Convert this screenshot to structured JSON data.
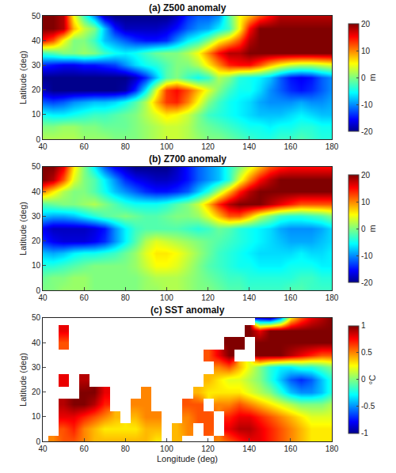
{
  "chart_data": [
    {
      "type": "heatmap",
      "title": "(a) Z500 anomaly",
      "y_label": "Latitude (deg)",
      "x": [
        40,
        45,
        50,
        55,
        60,
        65,
        70,
        75,
        80,
        85,
        90,
        95,
        100,
        105,
        110,
        115,
        120,
        125,
        130,
        135,
        140,
        145,
        150,
        155,
        160,
        165,
        170,
        175,
        180
      ],
      "y": [
        0,
        5,
        10,
        15,
        20,
        25,
        30,
        35,
        40,
        45,
        50
      ],
      "z": [
        [
          2,
          2,
          2,
          2,
          1,
          1,
          1,
          0,
          0,
          0,
          1,
          2,
          3,
          3,
          2,
          1,
          0,
          0,
          -1,
          -2,
          -3,
          -4,
          -4,
          -3,
          -3,
          -2,
          -3,
          -4,
          -4
        ],
        [
          0,
          0,
          1,
          1,
          0,
          0,
          -1,
          -1,
          -1,
          0,
          1,
          2,
          3,
          3,
          2,
          0,
          -1,
          -2,
          -3,
          -4,
          -5,
          -5,
          -6,
          -5,
          -5,
          -4,
          -4,
          -5,
          -5
        ],
        [
          -5,
          -6,
          -6,
          -5,
          -4,
          -3,
          -3,
          -2,
          -1,
          0,
          2,
          4,
          6,
          5,
          3,
          0,
          -3,
          -4,
          -5,
          -6,
          -7,
          -8,
          -8,
          -8,
          -7,
          -6,
          -7,
          -8,
          -8
        ],
        [
          -12,
          -13,
          -12,
          -10,
          -9,
          -8,
          -8,
          -7,
          -5,
          -2,
          2,
          8,
          13,
          14,
          10,
          5,
          0,
          -3,
          -5,
          -6,
          -7,
          -9,
          -10,
          -10,
          -10,
          -9,
          -10,
          -10,
          -9
        ],
        [
          -18,
          -20,
          -20,
          -20,
          -20,
          -20,
          -20,
          -20,
          -19,
          -14,
          -6,
          4,
          13,
          15,
          12,
          8,
          4,
          0,
          -3,
          -5,
          -5,
          -7,
          -10,
          -12,
          -14,
          -15,
          -14,
          -12,
          -10
        ],
        [
          -20,
          -20,
          -20,
          -20,
          -20,
          -20,
          -20,
          -20,
          -20,
          -18,
          -14,
          -8,
          -2,
          0,
          -3,
          -5,
          -3,
          2,
          0,
          -4,
          -5,
          -6,
          -8,
          -12,
          -15,
          -16,
          -15,
          -12,
          -10
        ],
        [
          -14,
          -15,
          -16,
          -16,
          -15,
          -15,
          -14,
          -13,
          -10,
          -7,
          -5,
          -4,
          -2,
          0,
          0,
          2,
          6,
          10,
          14,
          15,
          15,
          12,
          8,
          5,
          3,
          2,
          2,
          3,
          4
        ],
        [
          -3,
          -2,
          0,
          0,
          1,
          0,
          -3,
          -5,
          -6,
          -5,
          -3,
          -1,
          0,
          0,
          2,
          5,
          10,
          15,
          18,
          18,
          20,
          20,
          20,
          20,
          20,
          20,
          20,
          20,
          20
        ],
        [
          15,
          12,
          5,
          0,
          0,
          -3,
          -8,
          -10,
          -12,
          -14,
          -15,
          -15,
          -14,
          -10,
          -6,
          -4,
          0,
          5,
          8,
          12,
          18,
          20,
          20,
          20,
          20,
          20,
          20,
          20,
          20
        ],
        [
          20,
          20,
          18,
          8,
          3,
          0,
          -8,
          -15,
          -18,
          -18,
          -18,
          -18,
          -17,
          -15,
          -12,
          -10,
          -9,
          -6,
          -3,
          5,
          15,
          20,
          20,
          20,
          20,
          20,
          20,
          20,
          20
        ],
        [
          20,
          20,
          18,
          5,
          -3,
          -10,
          -18,
          -20,
          -20,
          -20,
          -20,
          -20,
          -20,
          -18,
          -14,
          -12,
          -12,
          -10,
          -2,
          5,
          8,
          12,
          15,
          18,
          18,
          18,
          18,
          18,
          18
        ]
      ],
      "xlim": [
        40,
        180
      ],
      "xticks": [
        40,
        60,
        80,
        100,
        120,
        140,
        160,
        180
      ],
      "ylim": [
        0,
        50
      ],
      "yticks": [
        0,
        10,
        20,
        30,
        40,
        50
      ],
      "colorbar_label": "m",
      "colorbar_range": [
        -20,
        20
      ],
      "colorbar_ticks": [
        -20,
        -10,
        0,
        10,
        20
      ]
    },
    {
      "type": "heatmap",
      "title": "(b) Z700 anomaly",
      "y_label": "Latitude (deg)",
      "x": [
        40,
        45,
        50,
        55,
        60,
        65,
        70,
        75,
        80,
        85,
        90,
        95,
        100,
        105,
        110,
        115,
        120,
        125,
        130,
        135,
        140,
        145,
        150,
        155,
        160,
        165,
        170,
        175,
        180
      ],
      "y": [
        0,
        5,
        10,
        15,
        20,
        25,
        30,
        35,
        40,
        45,
        50
      ],
      "z": [
        [
          0,
          0,
          1,
          1,
          1,
          0,
          0,
          0,
          0,
          0,
          1,
          1,
          2,
          2,
          1,
          0,
          0,
          -1,
          -2,
          -2,
          -3,
          -3,
          -3,
          -3,
          -2,
          -2,
          -3,
          -3,
          -3
        ],
        [
          -1,
          0,
          0,
          1,
          1,
          0,
          0,
          0,
          0,
          0,
          1,
          2,
          2,
          2,
          1,
          0,
          -1,
          -2,
          -3,
          -3,
          -4,
          -4,
          -4,
          -4,
          -4,
          -3,
          -3,
          -4,
          -4
        ],
        [
          -4,
          -4,
          -3,
          -2,
          -1,
          0,
          0,
          0,
          0,
          1,
          3,
          5,
          5,
          4,
          2,
          0,
          -2,
          -3,
          -4,
          -5,
          -5,
          -6,
          -6,
          -6,
          -5,
          -5,
          -5,
          -6,
          -6
        ],
        [
          -8,
          -9,
          -8,
          -6,
          -5,
          -5,
          -4,
          -3,
          -1,
          1,
          4,
          6,
          6,
          5,
          3,
          1,
          -1,
          -3,
          -4,
          -5,
          -6,
          -7,
          -7,
          -7,
          -7,
          -6,
          -7,
          -7,
          -6
        ],
        [
          -14,
          -16,
          -17,
          -17,
          -17,
          -16,
          -14,
          -10,
          -6,
          -2,
          2,
          4,
          3,
          2,
          1,
          0,
          -1,
          -2,
          -3,
          -4,
          -5,
          -6,
          -7,
          -8,
          -9,
          -9,
          -9,
          -8,
          -7
        ],
        [
          -16,
          -18,
          -18,
          -18,
          -18,
          -17,
          -15,
          -10,
          -6,
          -3,
          -2,
          -2,
          -2,
          -2,
          -3,
          -4,
          -3,
          -1,
          -2,
          -4,
          -5,
          -6,
          -7,
          -9,
          -10,
          -10,
          -10,
          -9,
          -7
        ],
        [
          -8,
          -9,
          -9,
          -8,
          -6,
          -4,
          -2,
          -1,
          0,
          -1,
          -2,
          -2,
          -1,
          0,
          0,
          1,
          4,
          8,
          12,
          12,
          8,
          3,
          0,
          -3,
          -4,
          -4,
          -3,
          -2,
          0
        ],
        [
          -2,
          -1,
          0,
          0,
          1,
          2,
          0,
          -2,
          -4,
          -5,
          -5,
          -5,
          -4,
          -2,
          0,
          3,
          8,
          14,
          18,
          20,
          20,
          20,
          18,
          16,
          14,
          12,
          12,
          12,
          12
        ],
        [
          10,
          6,
          2,
          0,
          0,
          -2,
          -5,
          -8,
          -10,
          -12,
          -14,
          -15,
          -15,
          -14,
          -12,
          -8,
          -4,
          2,
          8,
          14,
          18,
          20,
          20,
          20,
          20,
          20,
          20,
          20,
          20
        ],
        [
          20,
          18,
          12,
          4,
          0,
          -2,
          -6,
          -10,
          -14,
          -16,
          -17,
          -18,
          -18,
          -17,
          -15,
          -12,
          -10,
          -8,
          -4,
          4,
          10,
          15,
          18,
          20,
          20,
          20,
          20,
          20,
          20
        ],
        [
          20,
          20,
          16,
          6,
          0,
          -6,
          -12,
          -16,
          -18,
          -20,
          -20,
          -20,
          -20,
          -18,
          -15,
          -12,
          -10,
          -8,
          -4,
          0,
          4,
          8,
          12,
          14,
          15,
          15,
          15,
          15,
          15
        ]
      ],
      "xlim": [
        40,
        180
      ],
      "xticks": [
        40,
        60,
        80,
        100,
        120,
        140,
        160,
        180
      ],
      "ylim": [
        0,
        50
      ],
      "yticks": [
        0,
        10,
        20,
        30,
        40,
        50
      ],
      "colorbar_label": "m",
      "colorbar_range": [
        -20,
        20
      ],
      "colorbar_ticks": [
        -20,
        -10,
        0,
        10,
        20
      ]
    },
    {
      "type": "heatmap",
      "title": "(c) SST anomaly",
      "y_label": "Latitude (deg)",
      "x_label": "Longitude (deg)",
      "x": [
        40,
        45,
        50,
        55,
        60,
        65,
        70,
        75,
        80,
        85,
        90,
        95,
        100,
        105,
        110,
        115,
        120,
        125,
        130,
        135,
        140,
        145,
        150,
        155,
        160,
        165,
        170,
        175,
        180
      ],
      "y": [
        0,
        5,
        10,
        15,
        20,
        25,
        30,
        35,
        40,
        45,
        50
      ],
      "z": [
        [
          null,
          0.5,
          0.6,
          0.6,
          0.5,
          0.4,
          0.4,
          0.4,
          0.4,
          0.4,
          0.4,
          0.3,
          null,
          0.4,
          null,
          null,
          null,
          0.5,
          0.6,
          0.7,
          0.8,
          0.8,
          0.7,
          0.6,
          0.5,
          0.4,
          0.3,
          0.3,
          0.3
        ],
        [
          null,
          null,
          0.6,
          0.7,
          0.5,
          0.4,
          0.3,
          0.3,
          0.3,
          0.3,
          0.4,
          0.4,
          null,
          0.4,
          0.5,
          null,
          0.6,
          null,
          0.8,
          0.9,
          0.9,
          0.8,
          0.7,
          0.6,
          0.5,
          0.4,
          0.3,
          0.3,
          0.3
        ],
        [
          null,
          null,
          0.8,
          0.8,
          0.7,
          0.6,
          0.5,
          0.4,
          null,
          0.4,
          0.5,
          0.5,
          null,
          null,
          0.5,
          0.6,
          0.6,
          null,
          0.7,
          0.8,
          0.8,
          0.7,
          0.6,
          0.5,
          0.4,
          0.3,
          0.2,
          0.2,
          0.2
        ],
        [
          null,
          null,
          0.9,
          1,
          1,
          0.9,
          0.7,
          null,
          null,
          0.5,
          0.5,
          null,
          null,
          null,
          0.6,
          0.6,
          null,
          0.5,
          0.5,
          0.6,
          0.5,
          0.4,
          0.3,
          0.2,
          0.1,
          0,
          0,
          0,
          0.1
        ],
        [
          null,
          null,
          null,
          null,
          1,
          1,
          0.8,
          null,
          null,
          null,
          0.5,
          null,
          null,
          null,
          null,
          0.4,
          0.3,
          0.3,
          0.3,
          0.3,
          0.2,
          0.1,
          0,
          -0.2,
          -0.4,
          -0.5,
          -0.5,
          -0.4,
          -0.2
        ],
        [
          null,
          null,
          0.8,
          null,
          0.9,
          null,
          null,
          null,
          null,
          null,
          null,
          null,
          null,
          null,
          null,
          null,
          0.4,
          0.3,
          0.2,
          0.2,
          0.1,
          0,
          -0.2,
          -0.4,
          -0.6,
          -0.7,
          -0.6,
          -0.4,
          -0.2
        ],
        [
          null,
          null,
          null,
          null,
          null,
          null,
          null,
          null,
          null,
          null,
          null,
          null,
          null,
          null,
          null,
          null,
          null,
          0.5,
          0.6,
          0.4,
          0.2,
          0,
          -0.2,
          -0.3,
          -0.3,
          -0.2,
          -0.2,
          -0.1,
          0
        ],
        [
          null,
          null,
          null,
          null,
          null,
          null,
          null,
          null,
          null,
          null,
          null,
          null,
          null,
          null,
          null,
          null,
          0.6,
          0.8,
          1,
          null,
          null,
          1,
          1,
          1,
          0.9,
          0.8,
          0.7,
          0.6,
          0.6
        ],
        [
          null,
          null,
          0.6,
          null,
          null,
          null,
          null,
          null,
          null,
          null,
          null,
          null,
          null,
          null,
          null,
          null,
          null,
          null,
          1,
          1,
          null,
          1,
          1,
          1,
          1,
          1,
          1,
          1,
          1
        ],
        [
          null,
          null,
          0.8,
          null,
          null,
          null,
          null,
          null,
          null,
          null,
          null,
          null,
          null,
          null,
          null,
          null,
          null,
          null,
          null,
          null,
          1,
          0.8,
          1,
          1,
          1,
          1,
          1,
          1,
          1
        ],
        [
          null,
          null,
          null,
          null,
          null,
          null,
          null,
          null,
          null,
          null,
          null,
          null,
          null,
          null,
          null,
          null,
          null,
          null,
          null,
          null,
          null,
          -0.8,
          -0.9,
          -0.5,
          0.3,
          0.6,
          0.8,
          0.9,
          1
        ]
      ],
      "xlim": [
        40,
        180
      ],
      "xticks": [
        40,
        60,
        80,
        100,
        120,
        140,
        160,
        180
      ],
      "ylim": [
        0,
        50
      ],
      "yticks": [
        0,
        10,
        20,
        30,
        40,
        50
      ],
      "colorbar_label": "°C",
      "colorbar_range": [
        -1,
        1
      ],
      "colorbar_ticks": [
        -1,
        -0.5,
        0,
        0.5,
        1
      ]
    }
  ]
}
